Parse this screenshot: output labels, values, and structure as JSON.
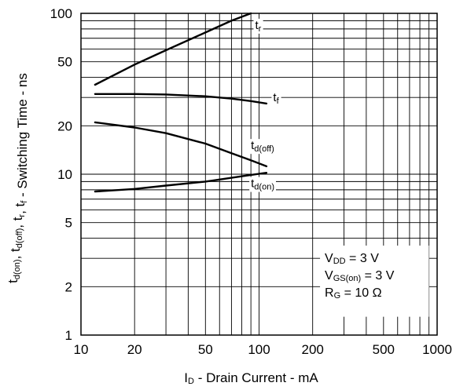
{
  "chart_data": {
    "type": "line",
    "x_scale": "log",
    "y_scale": "log",
    "xlim": [
      10,
      1000
    ],
    "ylim": [
      1,
      100
    ],
    "grid": true,
    "x_ticks": [
      {
        "value": 10,
        "label": "10"
      },
      {
        "value": 20,
        "label": "20"
      },
      {
        "value": 50,
        "label": "50"
      },
      {
        "value": 100,
        "label": "100"
      },
      {
        "value": 200,
        "label": "200"
      },
      {
        "value": 500,
        "label": "500"
      },
      {
        "value": 1000,
        "label": "1000"
      }
    ],
    "y_ticks": [
      {
        "value": 1,
        "label": "1"
      },
      {
        "value": 2,
        "label": "2"
      },
      {
        "value": 5,
        "label": "5"
      },
      {
        "value": 10,
        "label": "10"
      },
      {
        "value": 20,
        "label": "20"
      },
      {
        "value": 50,
        "label": "50"
      },
      {
        "value": 100,
        "label": "100"
      }
    ],
    "xlabel": {
      "main": "I",
      "sub": "D",
      "rest": " - Drain Current - mA"
    },
    "ylabel": {
      "parts": [
        {
          "t": "t",
          "s": "d(on)"
        },
        {
          "t": ", t",
          "s": "d(off)"
        },
        {
          "t": ", t",
          "s": "r"
        },
        {
          "t": ", t",
          "s": "f"
        },
        {
          "t": " - Switching Time - ns",
          "s": ""
        }
      ]
    },
    "series": [
      {
        "name": "r",
        "x": [
          12,
          20,
          30,
          50,
          70,
          90
        ],
        "y": [
          36,
          48,
          59,
          76,
          90,
          100
        ]
      },
      {
        "name": "f",
        "x": [
          12,
          20,
          30,
          50,
          70,
          90,
          110
        ],
        "y": [
          31.5,
          31.5,
          31.3,
          30.5,
          29.5,
          28.5,
          27.5
        ]
      },
      {
        "name": "d(off)",
        "x": [
          12,
          20,
          30,
          50,
          70,
          90,
          110
        ],
        "y": [
          21,
          19.5,
          18,
          15.5,
          13.5,
          12.2,
          11.2
        ]
      },
      {
        "name": "d(on)",
        "x": [
          12,
          20,
          30,
          50,
          70,
          90,
          110
        ],
        "y": [
          7.8,
          8.1,
          8.5,
          9.0,
          9.5,
          9.9,
          10.2
        ]
      }
    ],
    "annotations": [
      {
        "base": "V",
        "sub": "DD",
        "rest": " = 3 V"
      },
      {
        "base": "V",
        "sub": "GS(on)",
        "rest": " = 3 V"
      },
      {
        "base": "R",
        "sub": "G",
        "rest": " = 10 Ω"
      }
    ]
  }
}
